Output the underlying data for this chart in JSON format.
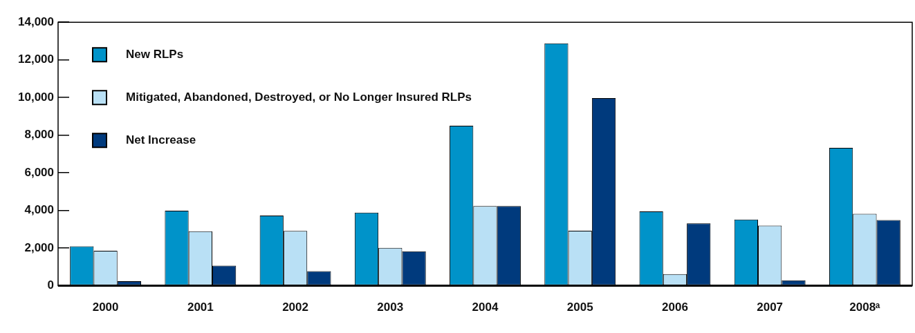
{
  "chart_data": {
    "type": "bar",
    "categories": [
      "2000",
      "2001",
      "2002",
      "2003",
      "2004",
      "2005",
      "2006",
      "2007",
      "2008ᵃ"
    ],
    "series": [
      {
        "name": "New RLPs",
        "color": "#0093c9",
        "values": [
          2100,
          3990,
          3730,
          3890,
          8500,
          12880,
          3950,
          3520,
          7330
        ]
      },
      {
        "name": "Mitigated, Abandoned, Destroyed, or No Longer Insured RLPs",
        "color": "#b9e0f5",
        "values": [
          1860,
          2890,
          2910,
          2010,
          4230,
          2920,
          620,
          3200,
          3820
        ]
      },
      {
        "name": "Net Increase",
        "color": "#003a7d",
        "values": [
          240,
          1070,
          770,
          1830,
          4230,
          9970,
          3320,
          290,
          3490
        ]
      }
    ],
    "ylim": [
      0,
      14000
    ],
    "yticks": [
      0,
      {
        "value": 2000,
        "label": "2,000"
      },
      {
        "value": 4000,
        "label": "4,000"
      },
      {
        "value": 6000,
        "label": "6,000"
      },
      {
        "value": 8000,
        "label": "8,000"
      },
      {
        "value": 10000,
        "label": "10,000"
      },
      {
        "value": 12000,
        "label": "12,000"
      },
      {
        "value": 14000,
        "label": "14,000"
      }
    ],
    "grid": false,
    "legend": "top left"
  }
}
